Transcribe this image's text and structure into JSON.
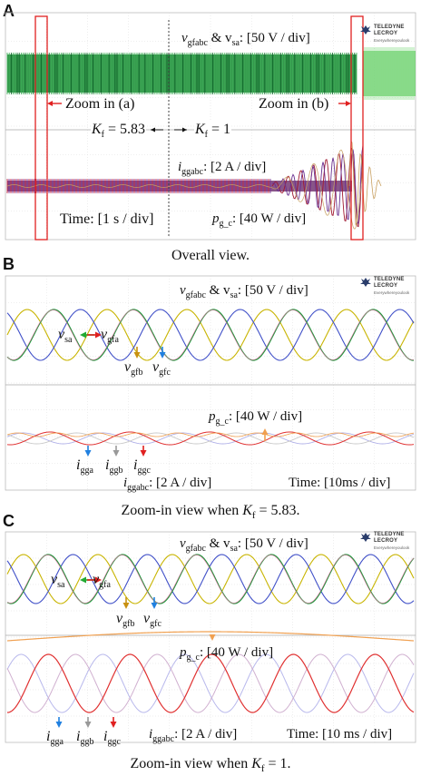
{
  "panels": {
    "a": {
      "letter": "A",
      "caption": "Overall view.",
      "scope_brand": "TELEDYNE LECROY",
      "scope_tag": "Everywhereyoulook",
      "voltage_label_prefix": "v",
      "voltage_label_sub": "gfabc",
      "voltage_label_mid": " & v",
      "voltage_label_sub2": "sa",
      "voltage_label_scale": ": [50 V / div]",
      "zoom_a": "Zoom in (a)",
      "zoom_b": "Zoom in (b)",
      "kf_left_k": "K",
      "kf_left_sub": "f",
      "kf_left_val": " = 5.83",
      "kf_right_k": "K",
      "kf_right_sub": "f",
      "kf_right_val": " = 1",
      "current_label_i": "i",
      "current_label_sub": "ggabc",
      "current_label_scale": ": [2 A / div]",
      "time_label": "Time: [1 s / div]",
      "power_label_p": "p",
      "power_label_sub": "g_c",
      "power_label_scale": ": [40 W / div]"
    },
    "b": {
      "letter": "B",
      "caption_prefix": "Zoom-in view when ",
      "caption_k": "K",
      "caption_sub": "f",
      "caption_val": " = 5.83.",
      "scope_brand": "TELEDYNE LECROY",
      "scope_tag": "Everywhereyoulook",
      "voltage_label_prefix": "v",
      "voltage_label_sub": "gfabc",
      "voltage_label_mid": " & v",
      "voltage_label_sub2": "sa",
      "voltage_label_scale": ": [50 V / div]",
      "vsa": "v",
      "vsa_sub": "sa",
      "vgfa": "v",
      "vgfa_sub": "gfa",
      "vgfb": "v",
      "vgfb_sub": "gfb",
      "vgfc": "v",
      "vgfc_sub": "gfc",
      "power_label_p": "p",
      "power_label_sub": "g_c",
      "power_label_scale": ": [40 W / div]",
      "igga": "i",
      "igga_sub": "gga",
      "iggb": "i",
      "iggb_sub": "ggb",
      "iggc": "i",
      "iggc_sub": "ggc",
      "current_label_i": "i",
      "current_label_sub": "ggabc",
      "current_label_scale": ": [2 A / div]",
      "time_label": "Time: [10ms / div]"
    },
    "c": {
      "letter": "C",
      "caption_prefix": "Zoom-in view when ",
      "caption_k": "K",
      "caption_sub": "f",
      "caption_val": " = 1.",
      "scope_brand": "TELEDYNE LECROY",
      "scope_tag": "Everywhereyoulook",
      "voltage_label_prefix": "v",
      "voltage_label_sub": "gfabc",
      "voltage_label_mid": " & v",
      "voltage_label_sub2": "sa",
      "voltage_label_scale": ": [50 V / div]",
      "vsa": "v",
      "vsa_sub": "sa",
      "vgfa": "v",
      "vgfa_sub": "gfa",
      "vgfb": "v",
      "vgfb_sub": "gfb",
      "vgfc": "v",
      "vgfc_sub": "gfc",
      "power_label_p": "p",
      "power_label_sub": "g_c",
      "power_label_scale": ": [40 W / div]",
      "igga": "i",
      "igga_sub": "gga",
      "iggb": "i",
      "iggb_sub": "ggb",
      "iggc": "i",
      "iggc_sub": "ggc",
      "current_label_i": "i",
      "current_label_sub": "ggabc",
      "current_label_scale": ": [2 A / div]",
      "time_label": "Time: [10 ms / div]"
    }
  },
  "colors": {
    "phase_a_green": "#1a9a3a",
    "phase_b_yellow": "#c8b400",
    "phase_c_blue": "#4050c8",
    "vsa_pink": "#e070a0",
    "current_red": "#e03030",
    "current_gray": "#999999",
    "current_blue": "#8080d8",
    "power_orange": "#f0a050",
    "zoom_box_red": "#e02020",
    "arrow_green": "#22aa33",
    "arrow_red": "#e02020",
    "arrow_gold": "#c89010",
    "arrow_blue": "#2080e0",
    "arrow_gray": "#999999",
    "arrow_orange": "#f0a050",
    "grid": "#dddddd"
  }
}
